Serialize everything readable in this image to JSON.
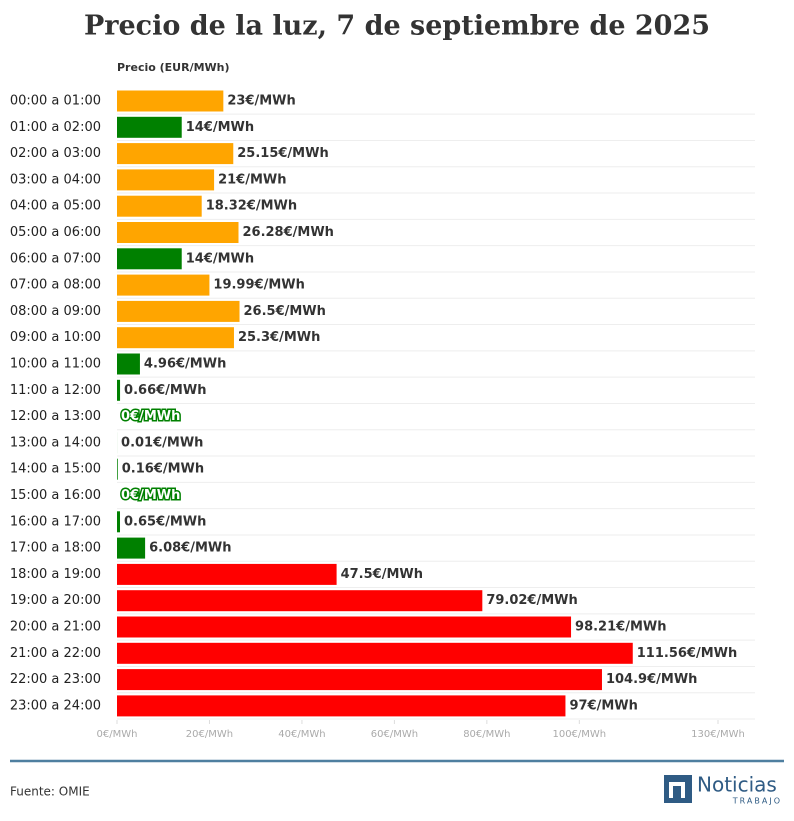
{
  "chart_data": {
    "type": "hbar",
    "title": "Precio de la luz, 7 de septiembre de 2025",
    "x_axis_title": "Precio (EUR/MWh)",
    "categories": [
      "00:00 a 01:00",
      "01:00 a 02:00",
      "02:00 a 03:00",
      "03:00 a 04:00",
      "04:00 a 05:00",
      "05:00 a 06:00",
      "06:00 a 07:00",
      "07:00 a 08:00",
      "08:00 a 09:00",
      "09:00 a 10:00",
      "10:00 a 11:00",
      "11:00 a 12:00",
      "12:00 a 13:00",
      "13:00 a 14:00",
      "14:00 a 15:00",
      "15:00 a 16:00",
      "16:00 a 17:00",
      "17:00 a 18:00",
      "18:00 a 19:00",
      "19:00 a 20:00",
      "20:00 a 21:00",
      "21:00 a 22:00",
      "22:00 a 23:00",
      "23:00 a 24:00"
    ],
    "values": [
      23,
      14,
      25.15,
      21,
      18.32,
      26.28,
      14,
      19.99,
      26.5,
      25.3,
      4.96,
      0.66,
      0,
      0.01,
      0.16,
      0,
      0.65,
      6.08,
      47.5,
      79.02,
      98.21,
      111.56,
      104.9,
      97
    ],
    "value_labels": [
      "23€/MWh",
      "14€/MWh",
      "25.15€/MWh",
      "21€/MWh",
      "18.32€/MWh",
      "26.28€/MWh",
      "14€/MWh",
      "19.99€/MWh",
      "26.5€/MWh",
      "25.3€/MWh",
      "4.96€/MWh",
      "0.66€/MWh",
      "0€/MWh",
      "0.01€/MWh",
      "0.16€/MWh",
      "0€/MWh",
      "0.65€/MWh",
      "6.08€/MWh",
      "47.5€/MWh",
      "79.02€/MWh",
      "98.21€/MWh",
      "111.56€/MWh",
      "104.9€/MWh",
      "97€/MWh"
    ],
    "colors": [
      "#ffa500",
      "#008000",
      "#ffa500",
      "#ffa500",
      "#ffa500",
      "#ffa500",
      "#008000",
      "#ffa500",
      "#ffa500",
      "#ffa500",
      "#008000",
      "#008000",
      "#008000",
      "#008000",
      "#008000",
      "#008000",
      "#008000",
      "#008000",
      "#ff0000",
      "#ff0000",
      "#ff0000",
      "#ff0000",
      "#ff0000",
      "#ff0000"
    ],
    "xlim": [
      0,
      138
    ],
    "xticks": [
      {
        "value": 0,
        "label": "0€/MWh"
      },
      {
        "value": 20,
        "label": "20€/MWh"
      },
      {
        "value": 40,
        "label": "40€/MWh"
      },
      {
        "value": 60,
        "label": "60€/MWh"
      },
      {
        "value": 80,
        "label": "80€/MWh"
      },
      {
        "value": 100,
        "label": "100€/MWh"
      },
      {
        "value": 130,
        "label": "130€/MWh"
      }
    ],
    "grid": true
  },
  "footer": {
    "source": "Fuente: OMIE",
    "logo_name": "Noticias",
    "logo_sub": "TRABAJO"
  }
}
